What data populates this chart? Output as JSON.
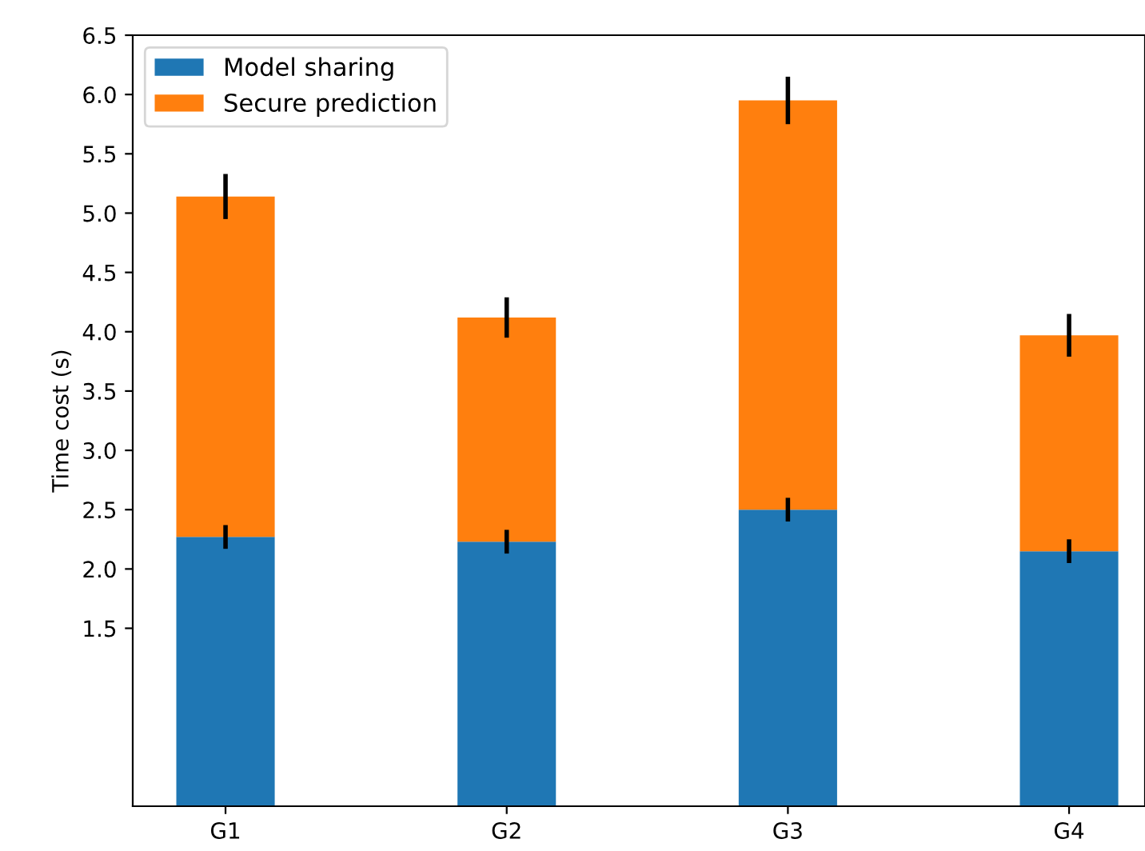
{
  "chart_data": {
    "type": "bar",
    "stacked": true,
    "ylabel": "Time cost (s)",
    "categories": [
      "G1",
      "G2",
      "G3",
      "G4"
    ],
    "series": [
      {
        "name": "Model sharing",
        "color": "#1f77b4",
        "values": [
          2.27,
          2.23,
          2.5,
          2.15
        ],
        "errors": [
          0.1,
          0.1,
          0.1,
          0.1
        ]
      },
      {
        "name": "Secure prediction",
        "color": "#ff7f0e",
        "values": [
          2.87,
          1.89,
          3.45,
          1.82
        ],
        "errors": [
          0.19,
          0.17,
          0.2,
          0.18
        ]
      }
    ],
    "ylim": [
      0,
      6.5
    ],
    "yticks": [
      1.5,
      {
        "value": 2,
        "label": "2.0"
      },
      2.5,
      {
        "value": 3,
        "label": "3.0"
      },
      3.5,
      {
        "value": 4,
        "label": "4.0"
      },
      4.5,
      {
        "value": 5,
        "label": "5.0"
      },
      5.5,
      {
        "value": 6,
        "label": "6.0"
      },
      6.5
    ],
    "legend": "top left",
    "grid": false
  }
}
